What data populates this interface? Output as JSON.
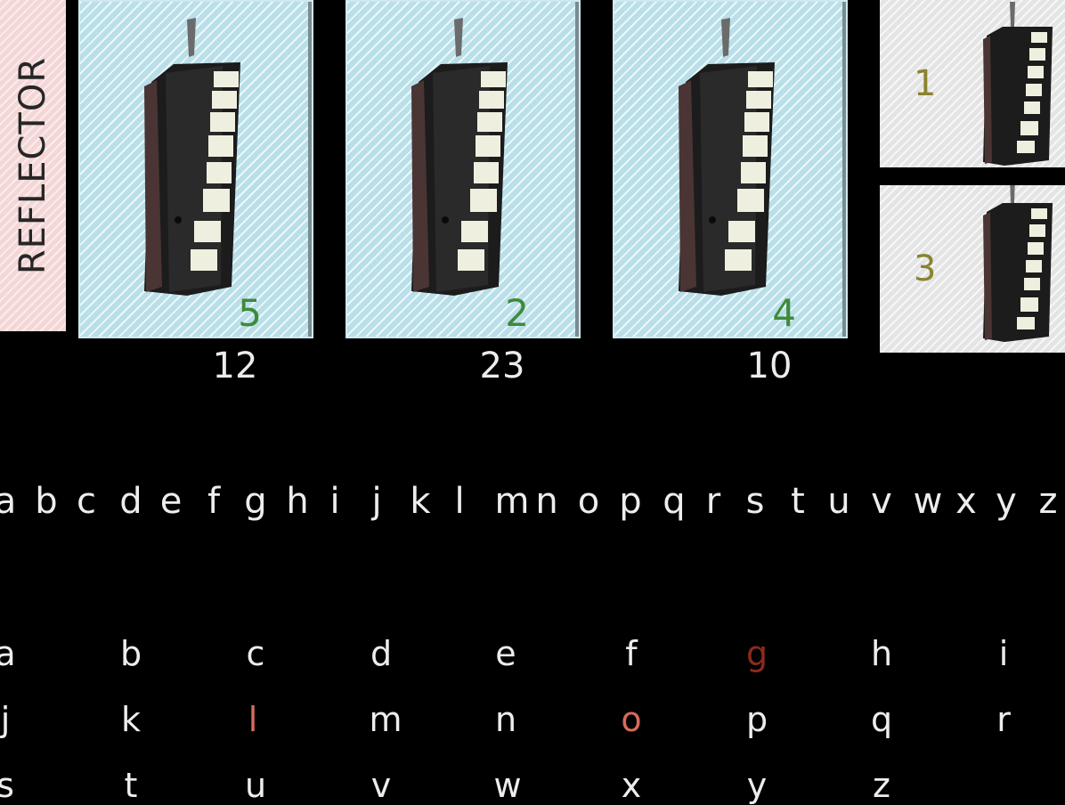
{
  "reflector": {
    "label": "REFLECTOR"
  },
  "rotors": [
    {
      "number": "5",
      "position": "12"
    },
    {
      "number": "2",
      "position": "23"
    },
    {
      "number": "4",
      "position": "10"
    }
  ],
  "spare_rotors": [
    {
      "number": "1"
    },
    {
      "number": "3"
    }
  ],
  "alphabet": [
    "a",
    "b",
    "c",
    "d",
    "e",
    "f",
    "g",
    "h",
    "i",
    "j",
    "k",
    "l",
    "m",
    "n",
    "o",
    "p",
    "q",
    "r",
    "s",
    "t",
    "u",
    "v",
    "w",
    "x",
    "y",
    "z"
  ],
  "letter_grid": {
    "rows": [
      [
        "a",
        "b",
        "c",
        "d",
        "e",
        "f",
        "g",
        "h",
        "i"
      ],
      [
        "j",
        "k",
        "l",
        "m",
        "n",
        "o",
        "p",
        "q",
        "r"
      ],
      [
        "s",
        "t",
        "u",
        "v",
        "w",
        "x",
        "y",
        "z"
      ]
    ],
    "highlighted": [
      "g",
      "l",
      "o"
    ]
  },
  "colors": {
    "rotor_card": "#b9dfe9",
    "reflector": "#f4d6d6",
    "spare_card": "#e4e4e4",
    "rotor_number": "#3f8a3a",
    "spare_number": "#8a8330",
    "highlight_dark": "#8b2a1c",
    "highlight_light": "#d86a5a"
  }
}
